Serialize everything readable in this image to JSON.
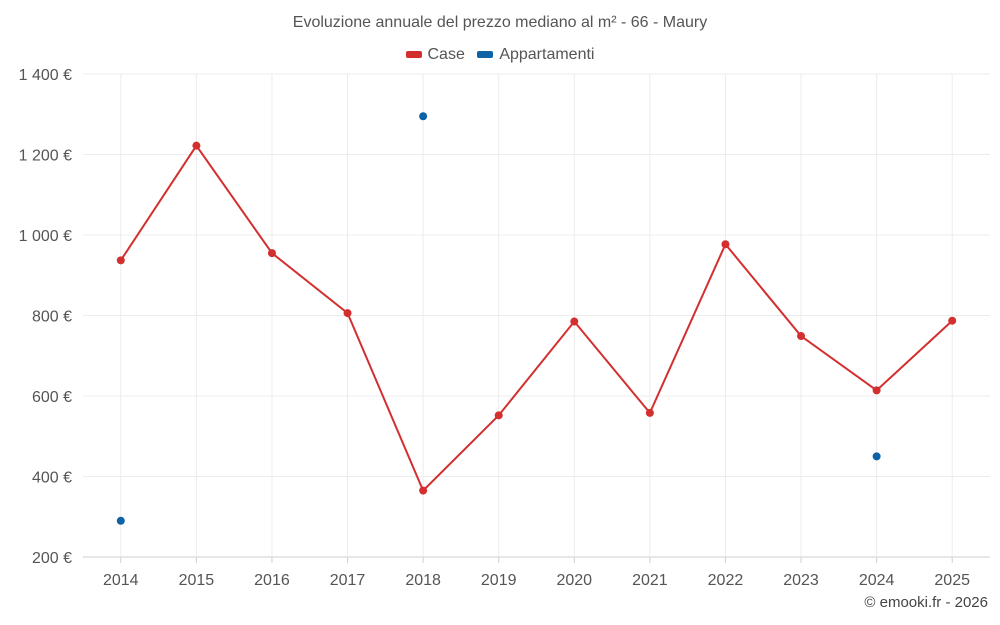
{
  "colors": {
    "case": "#d32f2f",
    "appartamenti": "#0d63a5"
  },
  "chart_data": {
    "type": "line",
    "title": "Evoluzione annuale del prezzo mediano al m² - 66 - Maury",
    "xlabel": "",
    "ylabel": "",
    "categories": [
      "2014",
      "2015",
      "2016",
      "2017",
      "2018",
      "2019",
      "2020",
      "2021",
      "2022",
      "2023",
      "2024",
      "2025"
    ],
    "ylim": [
      200,
      1400
    ],
    "yticks": [
      200,
      400,
      600,
      800,
      1000,
      1200,
      1400
    ],
    "ytick_labels": [
      "200 €",
      "400 €",
      "600 €",
      "800 €",
      "1 000 €",
      "1 200 €",
      "1 400 €"
    ],
    "grid": true,
    "legend_position": "top-center",
    "series": [
      {
        "name": "Case",
        "color": "#d32f2f",
        "values": [
          937,
          1222,
          955,
          806,
          365,
          552,
          785,
          558,
          977,
          749,
          614,
          787
        ]
      },
      {
        "name": "Appartamenti",
        "color": "#0d63a5",
        "values": [
          290,
          null,
          null,
          null,
          1295,
          null,
          null,
          null,
          null,
          null,
          450,
          null
        ]
      }
    ]
  },
  "credit": "© emooki.fr - 2026"
}
